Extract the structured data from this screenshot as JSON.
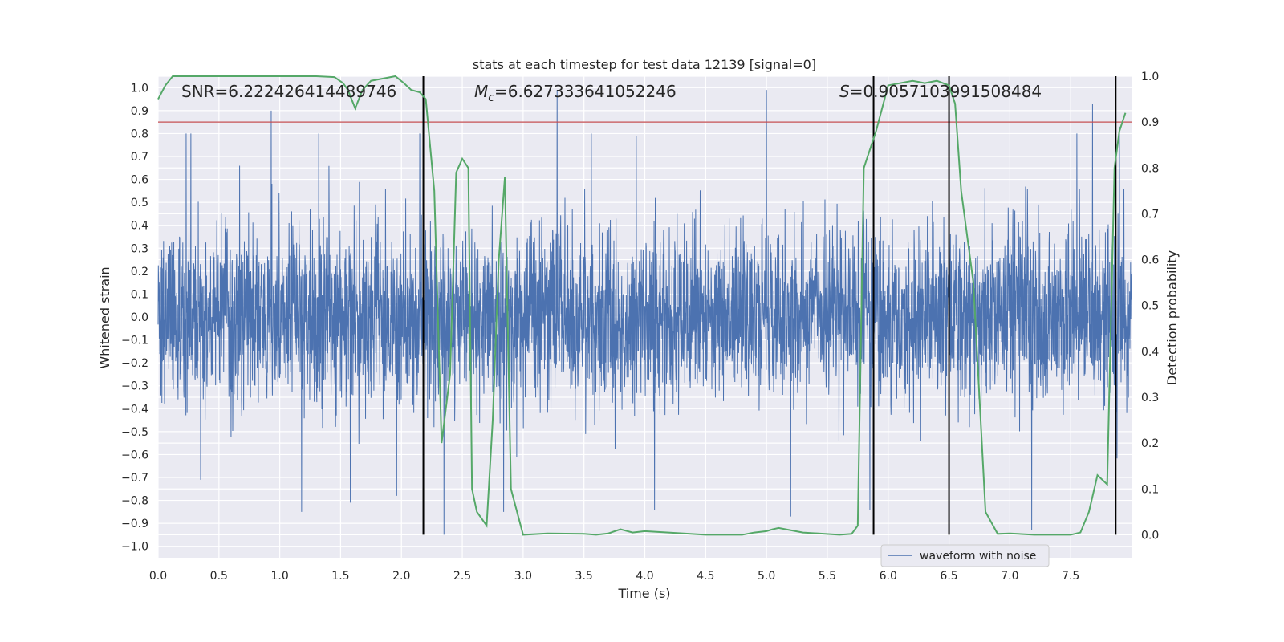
{
  "chart_data": {
    "type": "line",
    "title": "stats at each timestep for test data 12139 [signal=0]",
    "xlabel": "Time (s)",
    "ylabel_left": "Whitened strain",
    "ylabel_right": "Detection probability",
    "xlim": [
      0.0,
      8.0
    ],
    "ylim_left": [
      -1.05,
      1.05
    ],
    "ylim_right": [
      -0.05,
      1.0
    ],
    "x_ticks": [
      0.0,
      0.5,
      1.0,
      1.5,
      2.0,
      2.5,
      3.0,
      3.5,
      4.0,
      4.5,
      5.0,
      5.5,
      6.0,
      6.5,
      7.0,
      7.5
    ],
    "x_tick_labels": [
      "0.0",
      "0.5",
      "1.0",
      "1.5",
      "2.0",
      "2.5",
      "3.0",
      "3.5",
      "4.0",
      "4.5",
      "5.0",
      "5.5",
      "6.0",
      "6.5",
      "7.0",
      "7.5"
    ],
    "y_left_ticks": [
      1.0,
      0.9,
      0.8,
      0.7,
      0.6,
      0.5,
      0.4,
      0.3,
      0.2,
      0.1,
      0.0,
      -0.1,
      -0.2,
      -0.3,
      -0.4,
      -0.5,
      -0.6,
      -0.7,
      -0.8,
      -0.9,
      -1.0
    ],
    "y_left_tick_labels": [
      "1.0",
      "0.9",
      "0.8",
      "0.7",
      "0.6",
      "0.5",
      "0.4",
      "0.3",
      "0.2",
      "0.1",
      "0.0",
      "−0.1",
      "−0.2",
      "−0.3",
      "−0.4",
      "−0.5",
      "−0.6",
      "−0.7",
      "−0.8",
      "−0.9",
      "−1.0"
    ],
    "y_right_ticks": [
      1.0,
      0.9,
      0.8,
      0.7,
      0.6,
      0.5,
      0.4,
      0.3,
      0.2,
      0.1,
      0.0
    ],
    "y_right_tick_labels": [
      "1.0",
      "0.9",
      "0.8",
      "0.7",
      "0.6",
      "0.5",
      "0.4",
      "0.3",
      "0.2",
      "0.1",
      "0.0"
    ],
    "annotations": {
      "snr": "SNR=6.222426414489746",
      "mc_symbol": "M",
      "mc_sub": "c",
      "mc_value": "=6.627333641052246",
      "s_symbol": "S",
      "s_value": "=0.9057103991508484"
    },
    "threshold": {
      "axis": "right",
      "value": 0.9,
      "color": "#c44e52"
    },
    "vertical_lines": {
      "x": [
        2.18,
        5.88,
        6.5,
        7.87
      ],
      "y_range_right": [
        0.0,
        1.0
      ],
      "color": "#000000"
    },
    "series": [
      {
        "name": "waveform with noise",
        "axis": "left",
        "color": "#4c72b0",
        "sample_rate": 512,
        "envelope_std": 0.19,
        "spikes": [
          [
            0.23,
            0.8
          ],
          [
            0.27,
            0.8
          ],
          [
            0.35,
            -0.71
          ],
          [
            0.93,
            0.9
          ],
          [
            1.18,
            -0.85
          ],
          [
            1.32,
            0.8
          ],
          [
            1.58,
            -0.81
          ],
          [
            1.96,
            -0.78
          ],
          [
            2.15,
            0.8
          ],
          [
            2.35,
            -0.95
          ],
          [
            2.84,
            -0.85
          ],
          [
            3.28,
            0.99
          ],
          [
            3.56,
            0.8
          ],
          [
            3.93,
            0.79
          ],
          [
            4.08,
            -0.84
          ],
          [
            5.0,
            0.99
          ],
          [
            5.2,
            -0.87
          ],
          [
            5.85,
            -0.84
          ],
          [
            7.18,
            -0.93
          ],
          [
            7.55,
            0.8
          ],
          [
            7.68,
            0.93
          ],
          [
            7.9,
            0.83
          ]
        ]
      },
      {
        "name": "detection probability",
        "axis": "right",
        "color": "#55a868",
        "x": [
          0.0,
          0.06,
          0.12,
          0.2,
          0.5,
          1.0,
          1.3,
          1.45,
          1.52,
          1.56,
          1.62,
          1.68,
          1.75,
          1.85,
          1.95,
          2.02,
          2.08,
          2.15,
          2.2,
          2.27,
          2.33,
          2.4,
          2.45,
          2.5,
          2.55,
          2.58,
          2.62,
          2.7,
          2.75,
          2.8,
          2.85,
          2.9,
          3.0,
          3.2,
          3.5,
          3.6,
          3.7,
          3.8,
          3.9,
          4.0,
          4.5,
          4.8,
          4.9,
          5.0,
          5.05,
          5.1,
          5.3,
          5.6,
          5.7,
          5.75,
          5.8,
          5.85,
          5.9,
          5.95,
          6.0,
          6.1,
          6.2,
          6.3,
          6.4,
          6.45,
          6.5,
          6.55,
          6.6,
          6.7,
          6.8,
          6.9,
          7.0,
          7.2,
          7.5,
          7.58,
          7.65,
          7.72,
          7.8,
          7.86,
          7.9,
          7.95
        ],
        "y": [
          0.95,
          0.98,
          1.0,
          1.0,
          1.0,
          1.0,
          1.0,
          0.998,
          0.985,
          0.97,
          0.93,
          0.97,
          0.99,
          0.995,
          1.0,
          0.985,
          0.97,
          0.965,
          0.95,
          0.75,
          0.2,
          0.35,
          0.79,
          0.82,
          0.8,
          0.1,
          0.05,
          0.02,
          0.25,
          0.6,
          0.78,
          0.1,
          0.0,
          0.003,
          0.002,
          0.0,
          0.003,
          0.012,
          0.005,
          0.008,
          0.0,
          0.0,
          0.005,
          0.008,
          0.012,
          0.015,
          0.005,
          0.0,
          0.002,
          0.02,
          0.8,
          0.84,
          0.88,
          0.93,
          0.98,
          0.985,
          0.99,
          0.985,
          0.99,
          0.985,
          0.98,
          0.94,
          0.75,
          0.55,
          0.05,
          0.002,
          0.003,
          0.0,
          0.0,
          0.005,
          0.05,
          0.13,
          0.11,
          0.8,
          0.88,
          0.92
        ]
      }
    ],
    "legend": {
      "entries": [
        "waveform with noise"
      ],
      "position": "lower-right"
    }
  }
}
